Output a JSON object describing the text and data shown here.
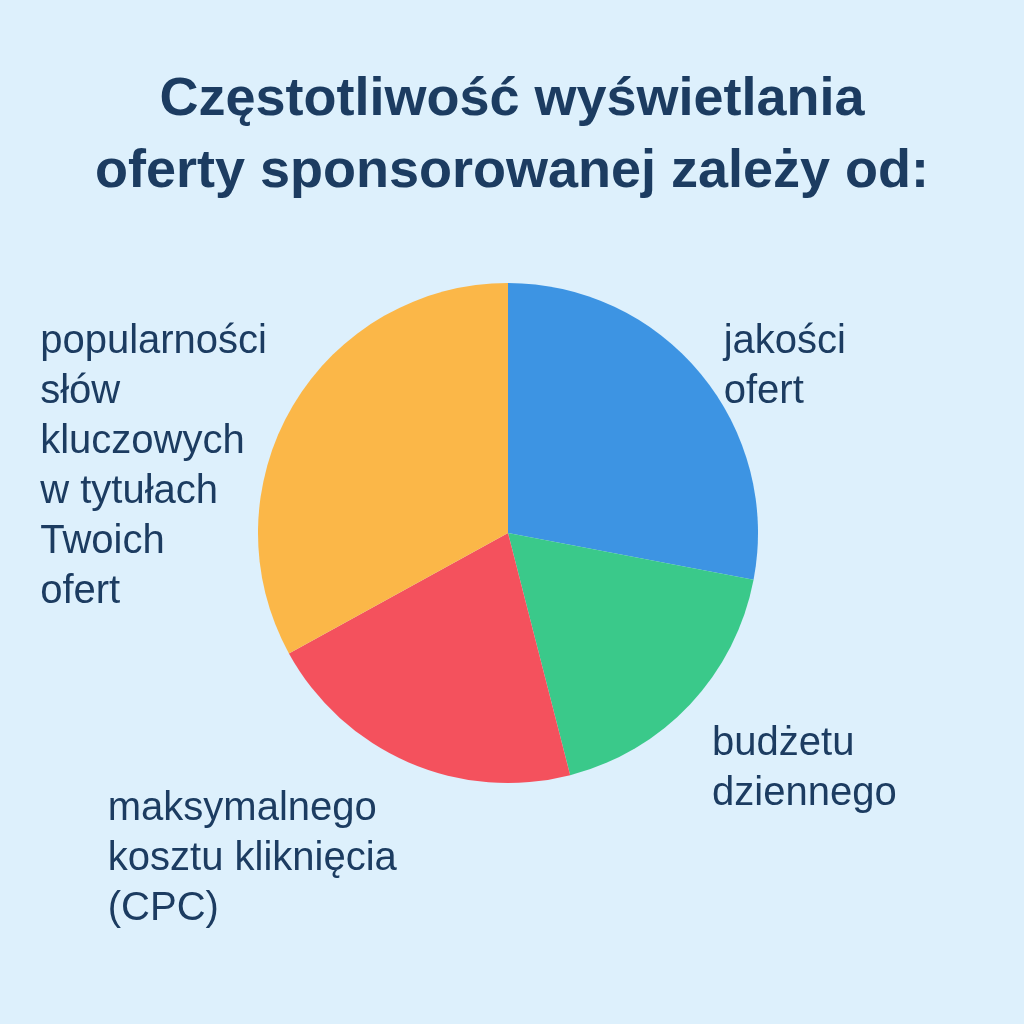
{
  "chart_data": {
    "type": "pie",
    "title": "Częstotliwość wyświetlania\noferty sponsorowanej zależy od:",
    "categories": [
      "jakości\nofert",
      "budżetu\ndziennego",
      "maksymalnego\nkosztu kliknięcia\n(CPC)",
      "popularności\nsłów\nkluczowych\nw tytułach\nTwoich\nofert"
    ],
    "values": [
      28,
      18,
      21,
      33
    ],
    "colors": [
      "#3d94e3",
      "#3ac98a",
      "#f4515d",
      "#fbb748"
    ]
  }
}
